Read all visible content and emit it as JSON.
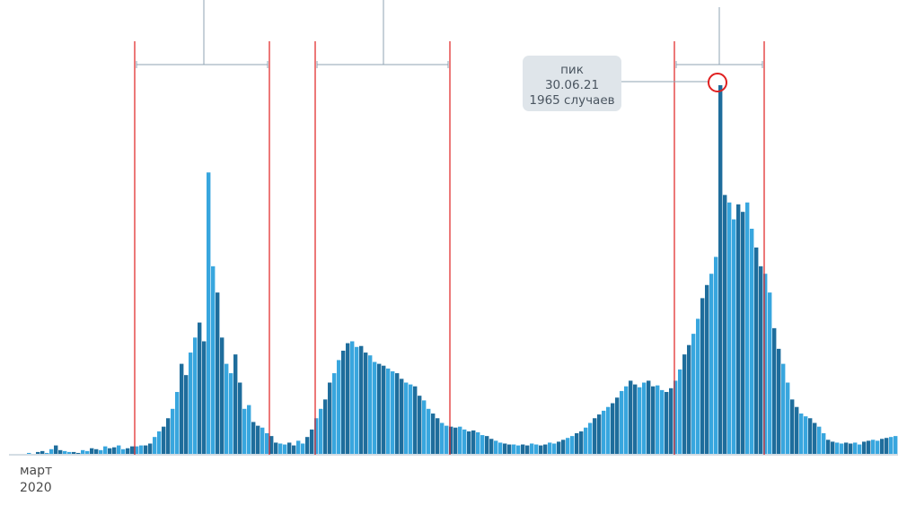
{
  "chart_data": {
    "type": "bar",
    "start_label": {
      "month": "март",
      "year": "2020"
    },
    "annotation": {
      "line1": "пик",
      "line2": "30.06.21",
      "line3": "1965 случаев"
    },
    "colors": [
      "#1e6d9c",
      "#38a6de"
    ],
    "values": [
      0,
      0,
      5,
      0,
      10,
      15,
      5,
      25,
      45,
      20,
      15,
      10,
      10,
      5,
      20,
      15,
      30,
      25,
      20,
      40,
      30,
      35,
      45,
      25,
      30,
      40,
      40,
      45,
      45,
      55,
      90,
      120,
      145,
      190,
      240,
      330,
      480,
      420,
      540,
      620,
      700,
      600,
      1500,
      1000,
      860,
      620,
      480,
      430,
      530,
      380,
      240,
      260,
      170,
      150,
      140,
      110,
      95,
      60,
      55,
      50,
      60,
      45,
      70,
      55,
      90,
      130,
      190,
      240,
      290,
      380,
      430,
      500,
      550,
      590,
      600,
      570,
      575,
      540,
      525,
      490,
      480,
      470,
      455,
      440,
      430,
      400,
      380,
      370,
      360,
      310,
      285,
      240,
      215,
      190,
      165,
      150,
      145,
      140,
      145,
      130,
      120,
      125,
      115,
      100,
      95,
      80,
      70,
      60,
      55,
      50,
      50,
      45,
      50,
      45,
      55,
      50,
      45,
      50,
      60,
      55,
      65,
      75,
      85,
      95,
      110,
      120,
      140,
      165,
      190,
      210,
      230,
      250,
      270,
      300,
      335,
      360,
      390,
      370,
      355,
      380,
      390,
      360,
      365,
      340,
      330,
      350,
      390,
      450,
      530,
      580,
      640,
      720,
      830,
      900,
      960,
      1050,
      1965,
      1380,
      1340,
      1250,
      1330,
      1290,
      1340,
      1200,
      1100,
      1000,
      960,
      860,
      670,
      560,
      480,
      380,
      290,
      250,
      215,
      200,
      190,
      165,
      145,
      110,
      75,
      65,
      60,
      55,
      60,
      55,
      60,
      50,
      65,
      70,
      75,
      70,
      80,
      85,
      90,
      95
    ]
  }
}
